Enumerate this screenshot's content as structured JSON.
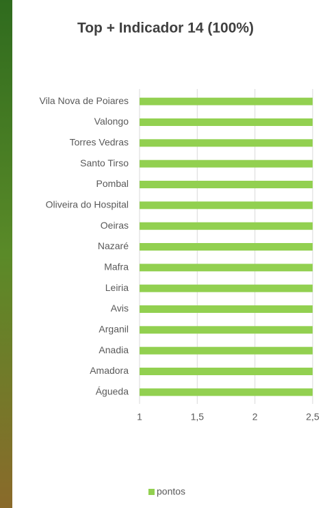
{
  "chart_data": {
    "type": "barh",
    "title": "Top + Indicador 14 (100%)",
    "categories": [
      "Vila Nova de Poiares",
      "Valongo",
      "Torres Vedras",
      "Santo Tirso",
      "Pombal",
      "Oliveira do Hospital",
      "Oeiras",
      "Nazaré",
      "Mafra",
      "Leiria",
      "Avis",
      "Arganil",
      "Anadia",
      "Amadora",
      "Águeda"
    ],
    "series": [
      {
        "name": "pontos",
        "color": "#92d050",
        "values": [
          2.5,
          2.5,
          2.5,
          2.5,
          2.5,
          2.5,
          2.5,
          2.5,
          2.5,
          2.5,
          2.5,
          2.5,
          2.5,
          2.5,
          2.5
        ]
      }
    ],
    "xlim": [
      1,
      2.5
    ],
    "xticks": [
      1,
      {
        "value": 1.5,
        "label": "1,5"
      },
      2,
      {
        "value": 2.5,
        "label": "2,5"
      }
    ],
    "grid": true,
    "legend": "bottom"
  }
}
